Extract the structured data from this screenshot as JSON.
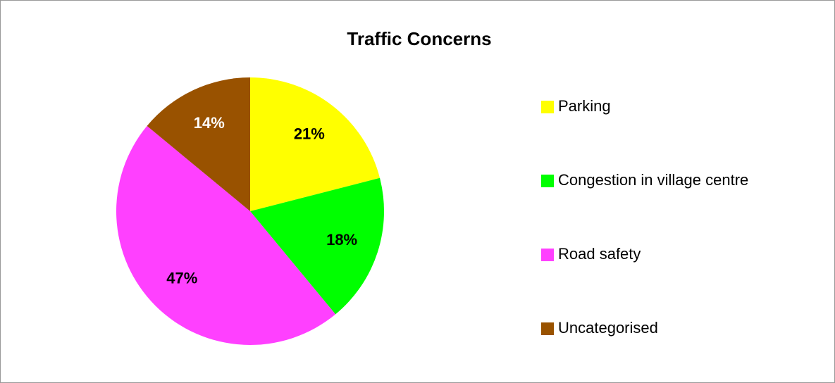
{
  "chart_data": {
    "type": "pie",
    "title": "Traffic Concerns",
    "categories": [
      "Parking",
      "Congestion in village centre",
      "Road safety",
      "Uncategorised"
    ],
    "values": [
      21,
      18,
      47,
      14
    ],
    "value_labels": [
      "21%",
      "18%",
      "47%",
      "14%"
    ],
    "colors": [
      "#ffff00",
      "#00ff00",
      "#ff40ff",
      "#995200"
    ],
    "label_colors": [
      "#000000",
      "#000000",
      "#000000",
      "#ffffff"
    ],
    "legend": "right"
  }
}
